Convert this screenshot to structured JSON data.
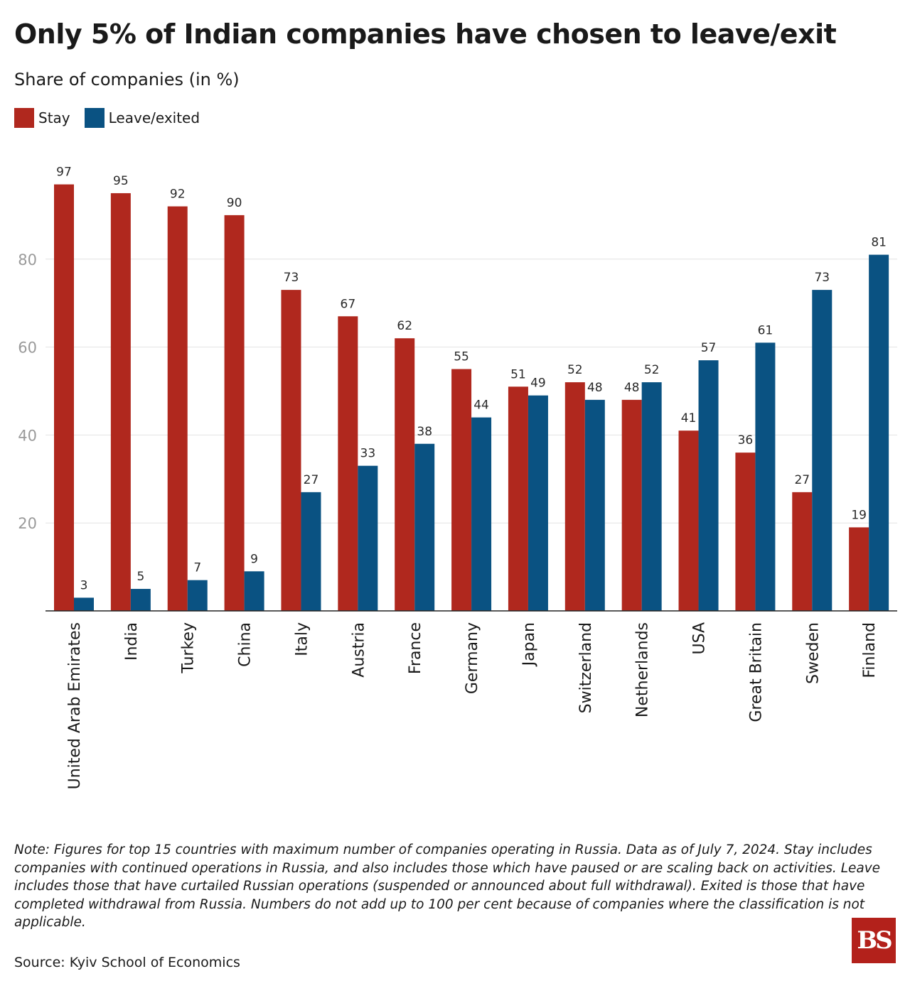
{
  "title": "Only 5% of Indian companies have chosen to leave/exit",
  "subtitle": "Share of companies (in %)",
  "note": "Note: Figures for top 15 countries with maximum number of companies operating in Russia. Data as of July 7, 2024. Stay includes companies with continued operations in Russia, and also includes those which have paused or are scaling back on activities. Leave includes those that have curtailed Russian operations (suspended or announced about full withdrawal). Exited is those that have completed withdrawal from Russia. Numbers do not add up to 100 per cent because of companies where the classification is not applicable.",
  "source": "Source: Kyiv School of Economics",
  "logo": "BS",
  "colors": {
    "stay": "#b0281e",
    "leave": "#0a5282",
    "grid": "#e2e2e2",
    "axis": "#222222"
  },
  "chart_data": {
    "type": "bar",
    "categories": [
      "United Arab Emirates",
      "India",
      "Turkey",
      "China",
      "Italy",
      "Austria",
      "France",
      "Germany",
      "Japan",
      "Switzerland",
      "Netherlands",
      "USA",
      "Great Britain",
      "Sweden",
      "Finland"
    ],
    "series": [
      {
        "name": "Stay",
        "values": [
          97,
          95,
          92,
          90,
          73,
          67,
          62,
          55,
          51,
          52,
          48,
          41,
          36,
          27,
          19
        ]
      },
      {
        "name": "Leave/exited",
        "values": [
          3,
          5,
          7,
          9,
          27,
          33,
          38,
          44,
          49,
          48,
          52,
          57,
          61,
          73,
          81
        ]
      }
    ],
    "yticks": [
      20,
      40,
      60,
      80
    ],
    "ylim": [
      0,
      100
    ],
    "grid": true,
    "legend": "top-left",
    "data_labels": true
  }
}
